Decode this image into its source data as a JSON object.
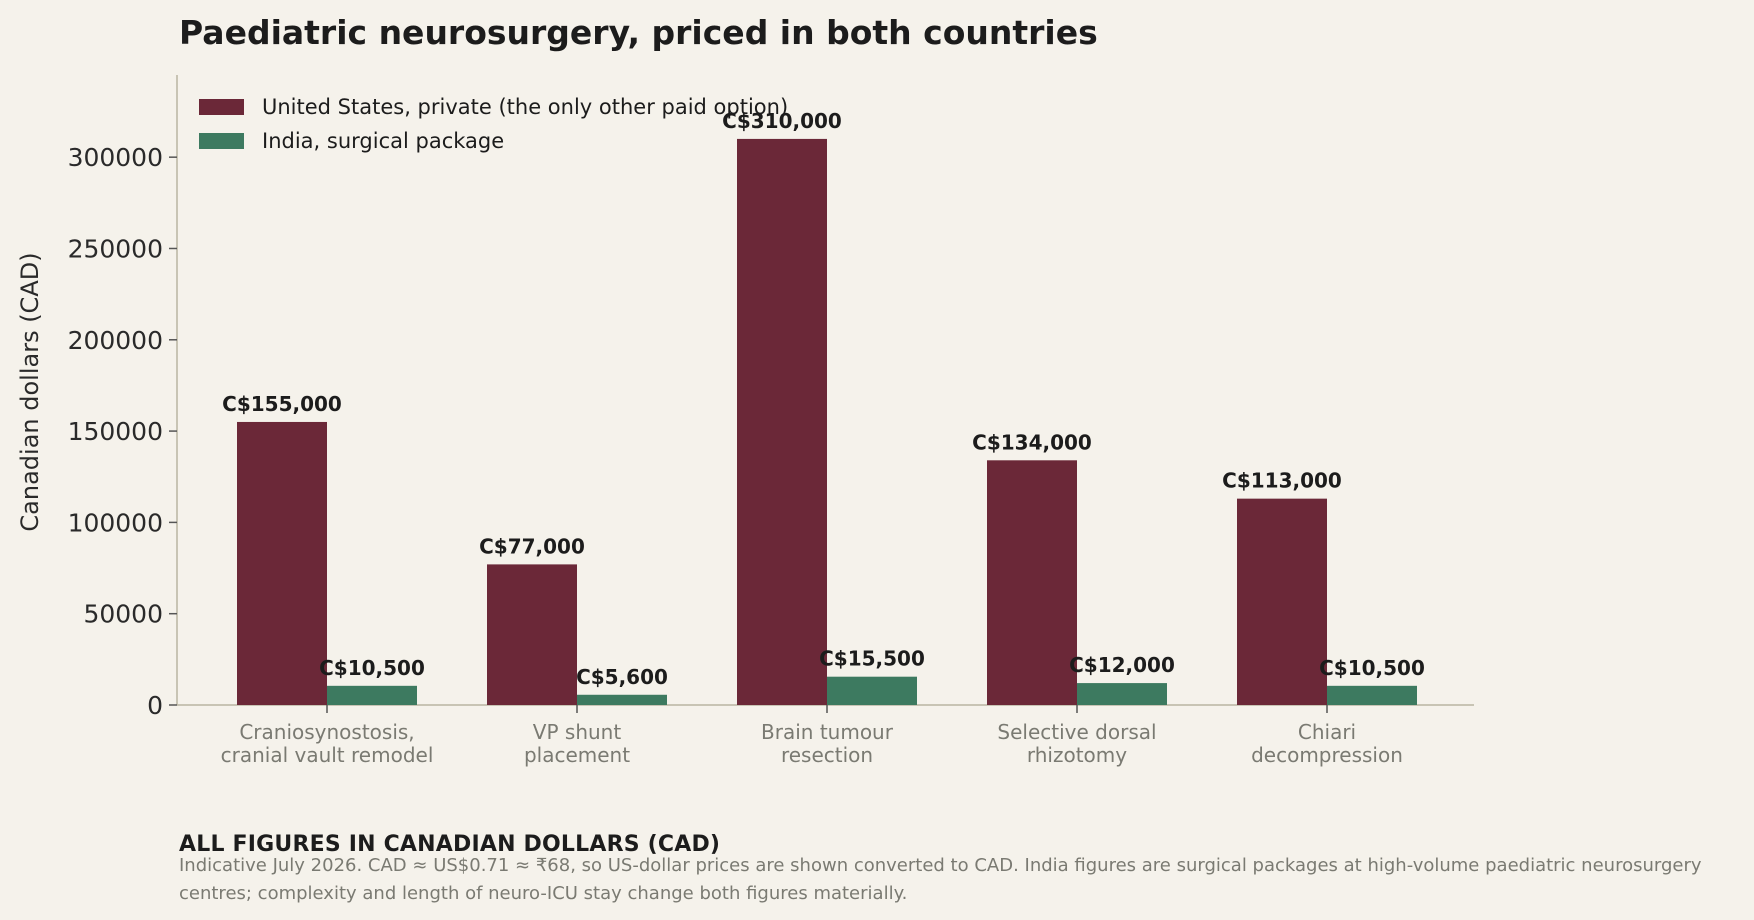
{
  "chart_data": {
    "type": "bar",
    "title": "Paediatric neurosurgery, priced in both countries",
    "ylabel": "Canadian dollars (CAD)",
    "xlabel": "",
    "ylim": [
      0,
      345000
    ],
    "yticks": [
      0,
      50000,
      100000,
      150000,
      200000,
      250000,
      300000
    ],
    "categories": [
      "Craniosynostosis,\ncranial vault remodel",
      "VP shunt\nplacement",
      "Brain tumour\nresection",
      "Selective dorsal\nrhizotomy",
      "Chiari\ndecompression"
    ],
    "series": [
      {
        "name": "United States, private (the only other paid option)",
        "color": "#6b2838",
        "values": [
          155000,
          77000,
          310000,
          134000,
          113000
        ],
        "labels": [
          "C$155,000",
          "C$77,000",
          "C$310,000",
          "C$134,000",
          "C$113,000"
        ]
      },
      {
        "name": "India, surgical package",
        "color": "#3d7a60",
        "values": [
          10500,
          5600,
          15500,
          12000,
          10500
        ],
        "labels": [
          "C$10,500",
          "C$5,600",
          "C$15,500",
          "C$12,000",
          "C$10,500"
        ]
      }
    ],
    "legend": "top-left",
    "grid": false
  },
  "footer": {
    "heading": "ALL FIGURES IN CANADIAN DOLLARS (CAD)",
    "note": "Indicative July 2026. CAD ≈ US$0.71 ≈ ₹68, so US-dollar prices are shown converted to CAD. India figures are surgical packages at high-volume paediatric neurosurgery centres; complexity and length of neuro-ICU stay change both figures materially."
  }
}
